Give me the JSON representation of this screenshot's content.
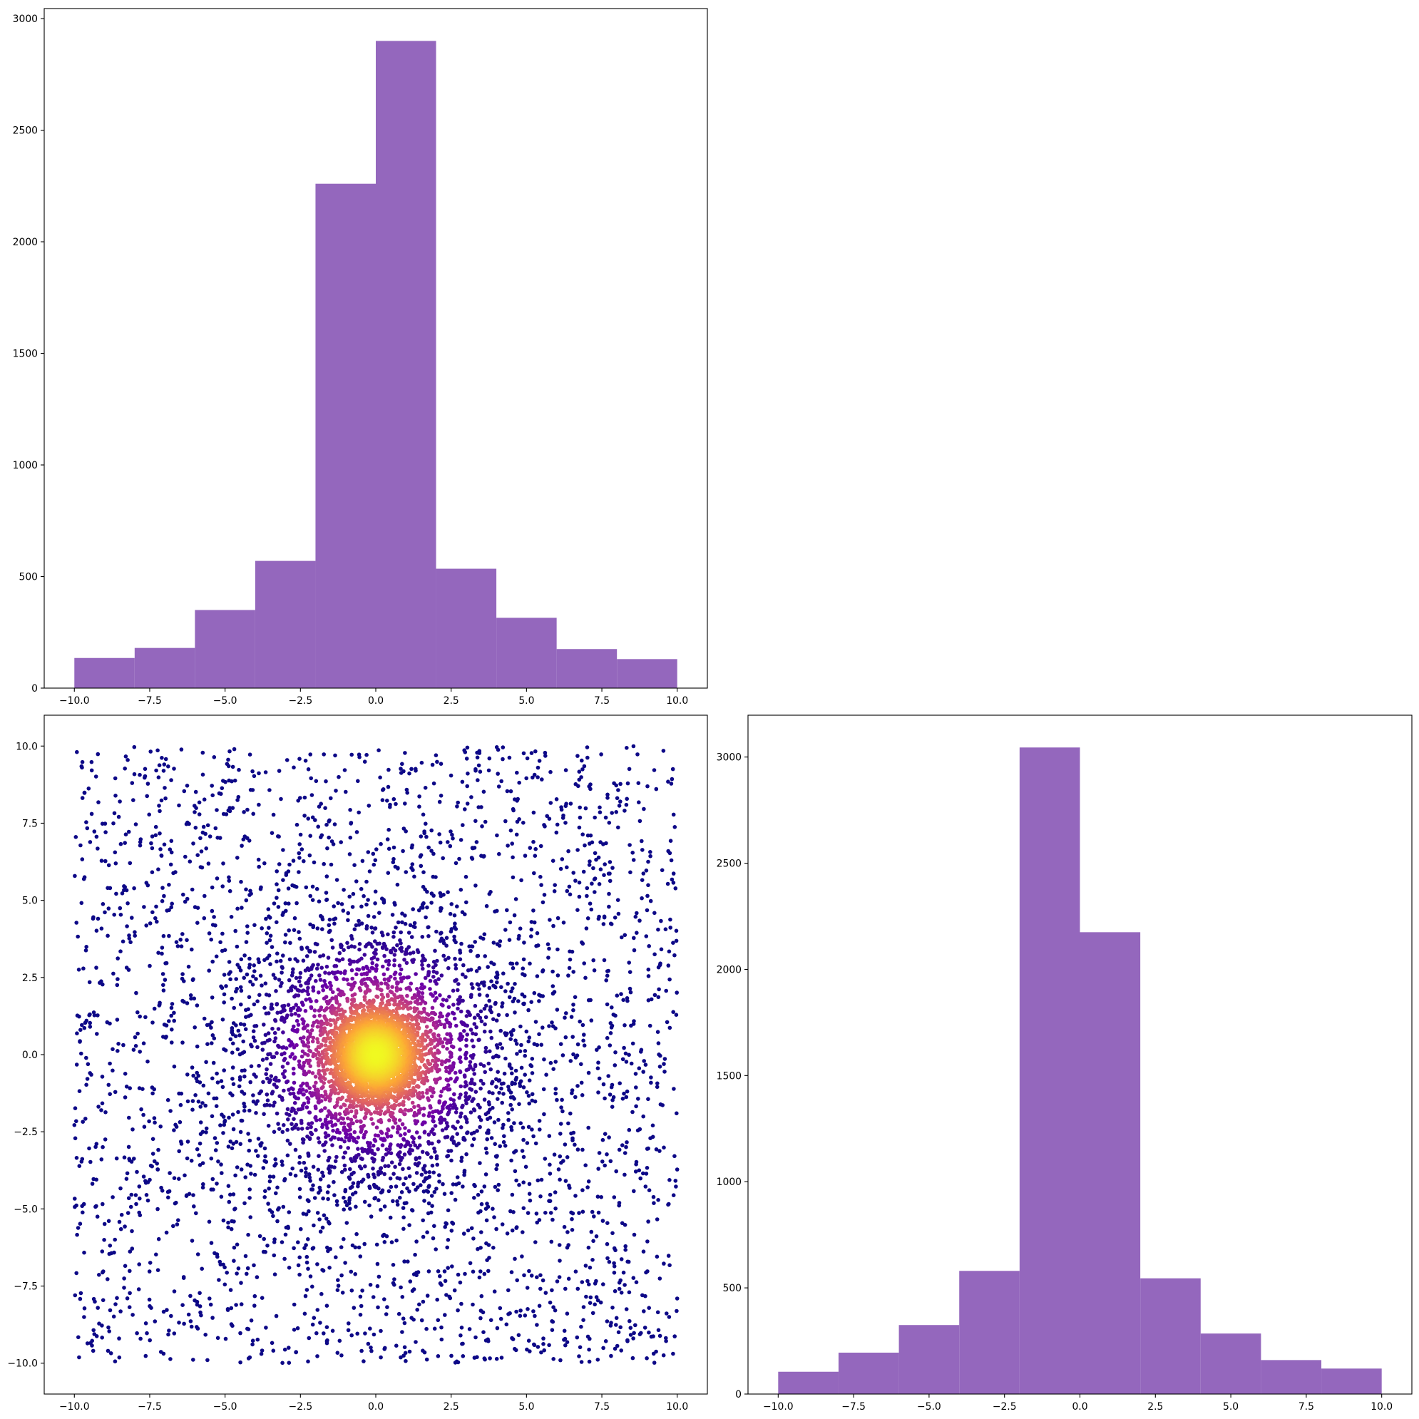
{
  "chart_data": [
    {
      "id": "top-left",
      "type": "bar",
      "title": "",
      "xlabel": "",
      "ylabel": "",
      "bar_color": "#9467bd",
      "bins": [
        -10,
        -8,
        -6,
        -4,
        -2,
        0,
        2,
        4,
        6,
        8,
        10
      ],
      "counts": [
        135,
        180,
        350,
        570,
        2260,
        2900,
        535,
        315,
        175,
        130
      ],
      "xlim": [
        -11,
        11
      ],
      "ylim": [
        0,
        3045
      ],
      "xticks": [
        -10,
        -7.5,
        -5,
        -2.5,
        0,
        2.5,
        5,
        7.5,
        10
      ],
      "xtick_labels": [
        "−10.0",
        "−7.5",
        "−5.0",
        "−2.5",
        "0.0",
        "2.5",
        "5.0",
        "7.5",
        "10.0"
      ],
      "yticks": [
        0,
        500,
        1000,
        1500,
        2000,
        2500,
        3000
      ],
      "ytick_labels": [
        "0",
        "500",
        "1000",
        "1500",
        "2000",
        "2500",
        "3000"
      ]
    },
    {
      "id": "bottom-left",
      "type": "scatter",
      "title": "",
      "xlabel": "",
      "ylabel": "",
      "colormap": [
        "#0d0887",
        "#6a00a8",
        "#b12a90",
        "#e16462",
        "#fca636",
        "#f0f921"
      ],
      "point_count": 8000,
      "xlim": [
        -11,
        11
      ],
      "ylim": [
        -11,
        11
      ],
      "xticks": [
        -10,
        -7.5,
        -5,
        -2.5,
        0,
        2.5,
        5,
        7.5,
        10
      ],
      "xtick_labels": [
        "−10.0",
        "−7.5",
        "−5.0",
        "−2.5",
        "0.0",
        "2.5",
        "5.0",
        "7.5",
        "10.0"
      ],
      "yticks": [
        -10,
        -7.5,
        -5,
        -2.5,
        0,
        2.5,
        5,
        7.5,
        10
      ],
      "ytick_labels": [
        "−10.0",
        "−7.5",
        "−5.0",
        "−2.5",
        "0.0",
        "2.5",
        "5.0",
        "7.5",
        "10.0"
      ]
    },
    {
      "id": "bottom-right",
      "type": "bar",
      "title": "",
      "xlabel": "",
      "ylabel": "",
      "bar_color": "#9467bd",
      "bins": [
        -10,
        -8,
        -6,
        -4,
        -2,
        0,
        2,
        4,
        6,
        8,
        10
      ],
      "counts": [
        105,
        195,
        325,
        580,
        3045,
        2175,
        545,
        285,
        160,
        120
      ],
      "xlim": [
        -11,
        11
      ],
      "ylim": [
        0,
        3197
      ],
      "xticks": [
        -10,
        -7.5,
        -5,
        -2.5,
        0,
        2.5,
        5,
        7.5,
        10
      ],
      "xtick_labels": [
        "−10.0",
        "−7.5",
        "−5.0",
        "−2.5",
        "0.0",
        "2.5",
        "5.0",
        "7.5",
        "10.0"
      ],
      "yticks": [
        0,
        500,
        1000,
        1500,
        2000,
        2500,
        3000
      ],
      "ytick_labels": [
        "0",
        "500",
        "1000",
        "1500",
        "2000",
        "2500",
        "3000"
      ]
    }
  ]
}
